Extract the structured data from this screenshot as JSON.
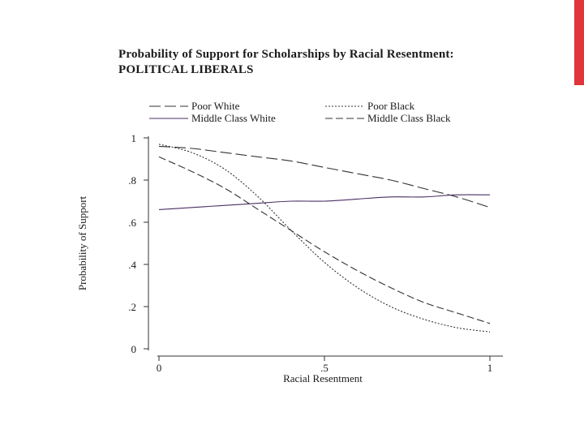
{
  "slide": {
    "accent_color": "#e0353a"
  },
  "chart_data": {
    "type": "line",
    "title": "Probability of Support for Scholarships by Racial Resentment:",
    "subtitle": "POLITICAL LIBERALS",
    "xlabel": "Racial Resentment",
    "ylabel": "Probability of Support",
    "xlim": [
      0,
      1
    ],
    "ylim": [
      0,
      1
    ],
    "x_ticks": [
      {
        "value": 0,
        "label": "0"
      },
      {
        "value": 0.5,
        "label": ".5"
      },
      {
        "value": 1,
        "label": "1"
      }
    ],
    "y_ticks": [
      {
        "value": 0,
        "label": "0"
      },
      {
        "value": 0.2,
        "label": ".2"
      },
      {
        "value": 0.4,
        "label": ".4"
      },
      {
        "value": 0.6,
        "label": ".6"
      },
      {
        "value": 0.8,
        "label": ".8"
      },
      {
        "value": 1,
        "label": "1"
      }
    ],
    "grid": false,
    "legend_position": "top",
    "x": [
      0,
      0.1,
      0.2,
      0.3,
      0.4,
      0.5,
      0.6,
      0.7,
      0.8,
      0.9,
      1.0
    ],
    "series": [
      {
        "name": "Poor White",
        "style": "long-dash",
        "color": "#333333",
        "values": [
          0.96,
          0.95,
          0.93,
          0.91,
          0.89,
          0.86,
          0.83,
          0.8,
          0.76,
          0.72,
          0.67
        ]
      },
      {
        "name": "Poor Black",
        "style": "dotted",
        "color": "#333333",
        "values": [
          0.97,
          0.93,
          0.85,
          0.72,
          0.56,
          0.41,
          0.29,
          0.2,
          0.14,
          0.1,
          0.08
        ]
      },
      {
        "name": "Middle Class White",
        "style": "solid",
        "color": "#4a2f63",
        "values": [
          0.66,
          0.67,
          0.68,
          0.69,
          0.7,
          0.7,
          0.71,
          0.72,
          0.72,
          0.73,
          0.73
        ]
      },
      {
        "name": "Middle Class Black",
        "style": "dashed",
        "color": "#333333",
        "values": [
          0.91,
          0.84,
          0.76,
          0.66,
          0.56,
          0.46,
          0.37,
          0.29,
          0.22,
          0.17,
          0.12
        ]
      }
    ]
  }
}
